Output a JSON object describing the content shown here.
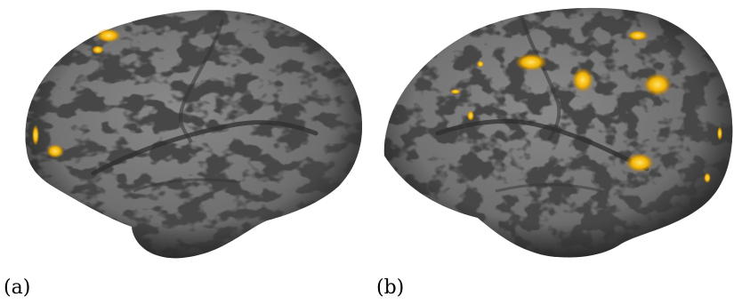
{
  "figure": {
    "panels": [
      {
        "label": "(a)",
        "view": "left-hemisphere-lateral",
        "activation_color": "#f4b000"
      },
      {
        "label": "(b)",
        "view": "right-hemisphere-lateral",
        "activation_color": "#f4b000"
      }
    ],
    "colors": {
      "background": "#ffffff",
      "gyri": "#7c7c7c",
      "sulci": "#4a4a4a",
      "activation_core": "#ffe060",
      "activation_edge": "#d08a00"
    }
  }
}
